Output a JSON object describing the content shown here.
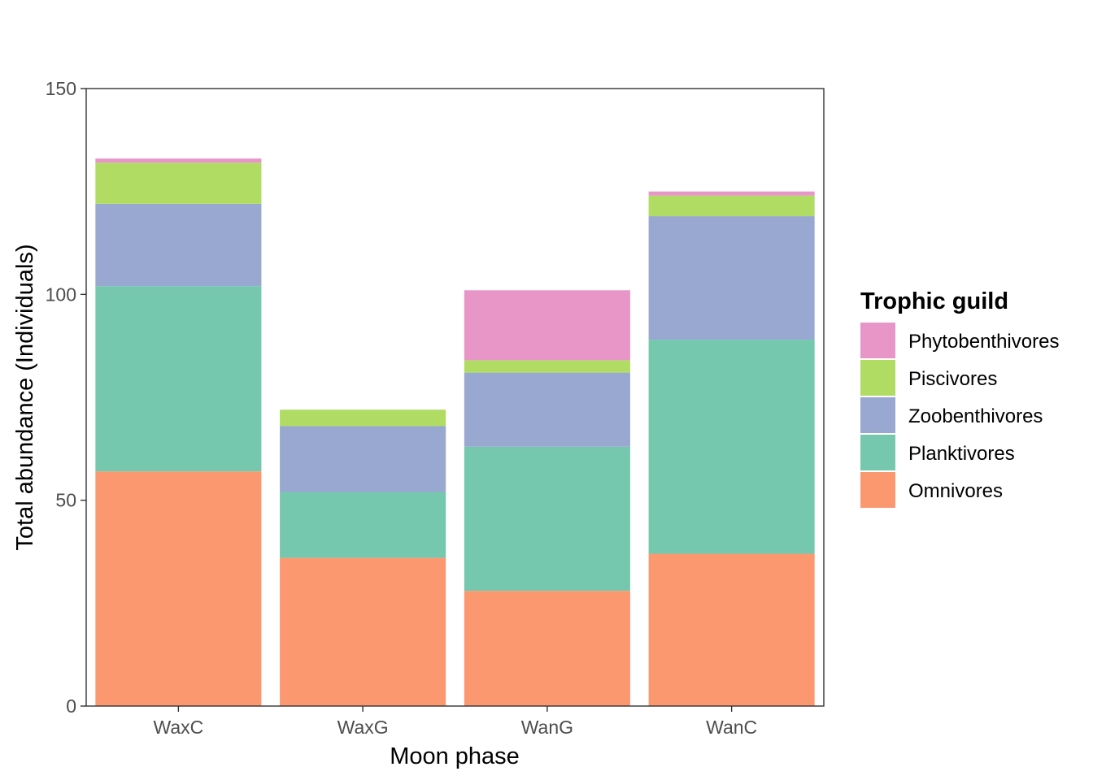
{
  "chart_data": {
    "type": "bar",
    "stacked": true,
    "categories": [
      "WaxC",
      "WaxG",
      "WanG",
      "WanC"
    ],
    "xlabel": "Moon phase",
    "ylabel": "Total abundance (Individuals)",
    "ylim": [
      0,
      150
    ],
    "yticks": [
      0,
      50,
      100,
      150
    ],
    "grid": false,
    "legend": {
      "title": "Trophic guild",
      "placement": "right"
    },
    "series": [
      {
        "name": "Omnivores",
        "color": "#FC9870",
        "values": [
          57,
          36,
          28,
          37
        ]
      },
      {
        "name": "Planktivores",
        "color": "#75C8AD",
        "values": [
          45,
          16,
          35,
          52
        ]
      },
      {
        "name": "Zoobenthivores",
        "color": "#98A8D0",
        "values": [
          20,
          16,
          18,
          30
        ]
      },
      {
        "name": "Piscivores",
        "color": "#B0DC64",
        "values": [
          10,
          4,
          3,
          5
        ]
      },
      {
        "name": "Phytobenthivores",
        "color": "#E896C8",
        "values": [
          1,
          0,
          17,
          1
        ]
      }
    ]
  }
}
